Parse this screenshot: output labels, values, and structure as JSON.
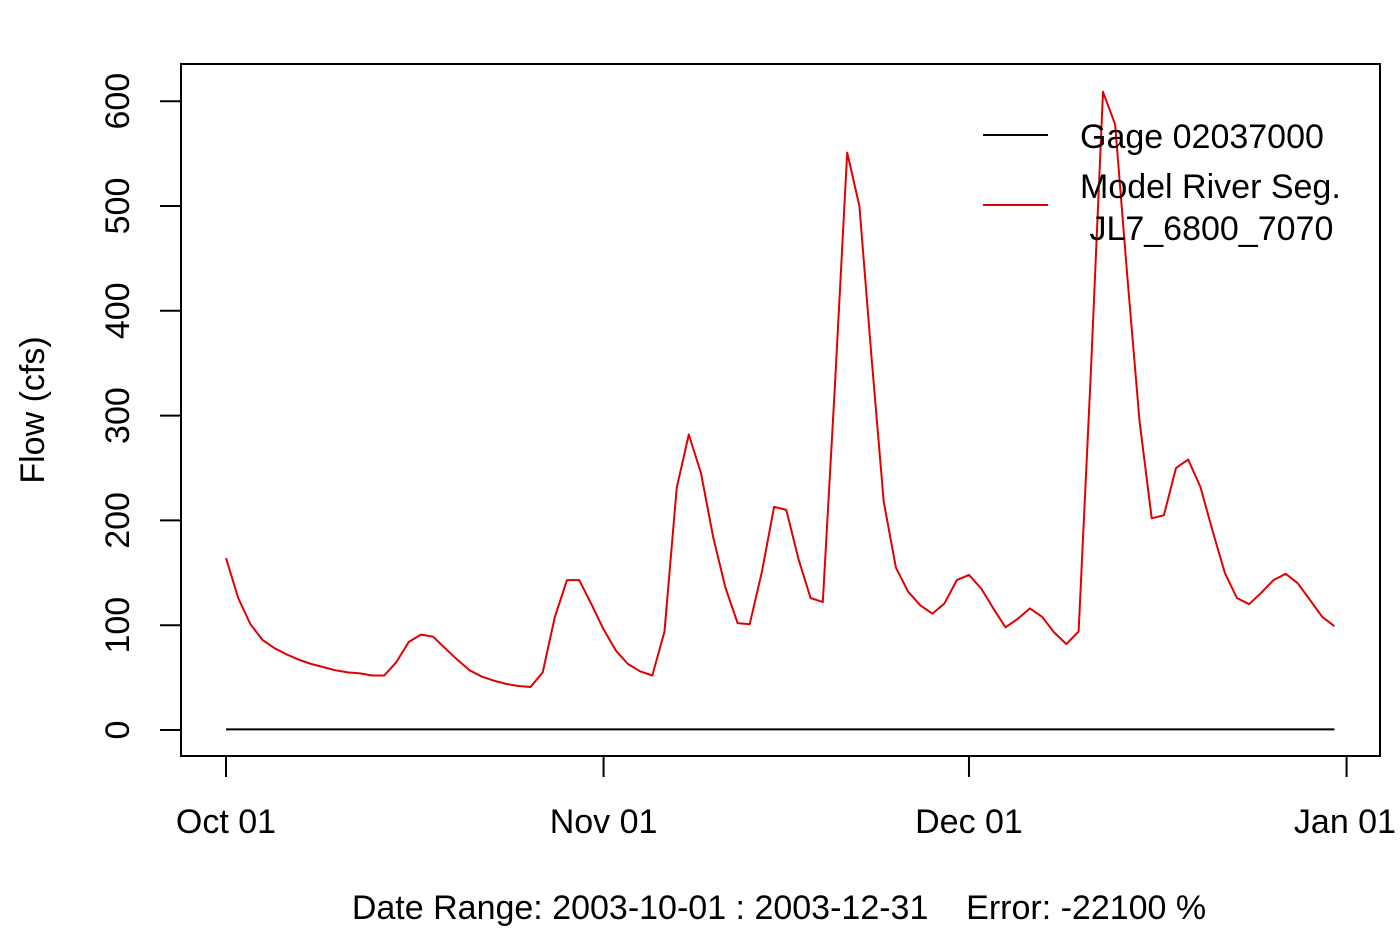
{
  "chart_data": {
    "type": "line",
    "xlabel": "Date Range: 2003-10-01 : 2003-12-31    Error: -22100 %",
    "ylabel": "Flow (cfs)",
    "xlim": [
      "2003-10-01",
      "2003-12-31"
    ],
    "ylim": [
      0,
      600
    ],
    "x_ticks": [
      {
        "date": "2003-10-01",
        "label": "Oct 01"
      },
      {
        "date": "2003-11-01",
        "label": "Nov 01"
      },
      {
        "date": "2003-12-01",
        "label": "Dec 01"
      },
      {
        "date": "2004-01-01",
        "label": "Jan 01"
      }
    ],
    "y_ticks": [
      0,
      100,
      200,
      300,
      400,
      500,
      600
    ],
    "grid": false,
    "legend_position": "top-right",
    "x_start": "2003-10-01",
    "series": [
      {
        "name": "Gage 02037000",
        "color": "#000000",
        "values": [
          0.6,
          0.6,
          0.6,
          0.6,
          0.6,
          0.6,
          0.6,
          0.6,
          0.6,
          0.6,
          0.6,
          0.6,
          0.6,
          0.6,
          0.6,
          0.6,
          0.6,
          0.6,
          0.6,
          0.6,
          0.6,
          0.6,
          0.6,
          0.6,
          0.6,
          0.6,
          0.6,
          0.6,
          0.6,
          0.6,
          0.6,
          0.6,
          0.6,
          0.6,
          0.6,
          0.6,
          0.6,
          0.6,
          0.6,
          0.6,
          0.6,
          0.6,
          0.6,
          0.6,
          0.6,
          0.6,
          0.6,
          0.6,
          0.6,
          0.6,
          0.6,
          0.6,
          0.6,
          0.6,
          0.6,
          0.6,
          0.6,
          0.6,
          0.6,
          0.6,
          0.6,
          0.6,
          0.6,
          0.6,
          0.6,
          0.6,
          0.6,
          0.6,
          0.6,
          0.6,
          0.6,
          0.6,
          0.6,
          0.6,
          0.6,
          0.6,
          0.6,
          0.6,
          0.6,
          0.6,
          0.6,
          0.6,
          0.6,
          0.6,
          0.6,
          0.6,
          0.6,
          0.6,
          0.6,
          0.6,
          0.6,
          0.6
        ]
      },
      {
        "name": "Model River Seg.\n JL7_6800_7070",
        "name_lines": [
          "Model River Seg.",
          " JL7_6800_7070"
        ],
        "color": "#e00000",
        "values": [
          164,
          126,
          101,
          86,
          78,
          72,
          67,
          63,
          60,
          57,
          55,
          54,
          52,
          52,
          65,
          84,
          91,
          89,
          78,
          67,
          57,
          51,
          47,
          44,
          42,
          41,
          55,
          108,
          143,
          143,
          120,
          96,
          76,
          63,
          56,
          52,
          94,
          231,
          282,
          245,
          184,
          136,
          102,
          101,
          151,
          213,
          210,
          163,
          126,
          122,
          330,
          551,
          500,
          356,
          218,
          155,
          132,
          119,
          111,
          121,
          143,
          148,
          135,
          116,
          98,
          106,
          116,
          108,
          93,
          82,
          94,
          340,
          609,
          578,
          433,
          295,
          202,
          205,
          250,
          258,
          232,
          190,
          150,
          126,
          120,
          131,
          143,
          149,
          140,
          124,
          108,
          99
        ]
      }
    ]
  }
}
